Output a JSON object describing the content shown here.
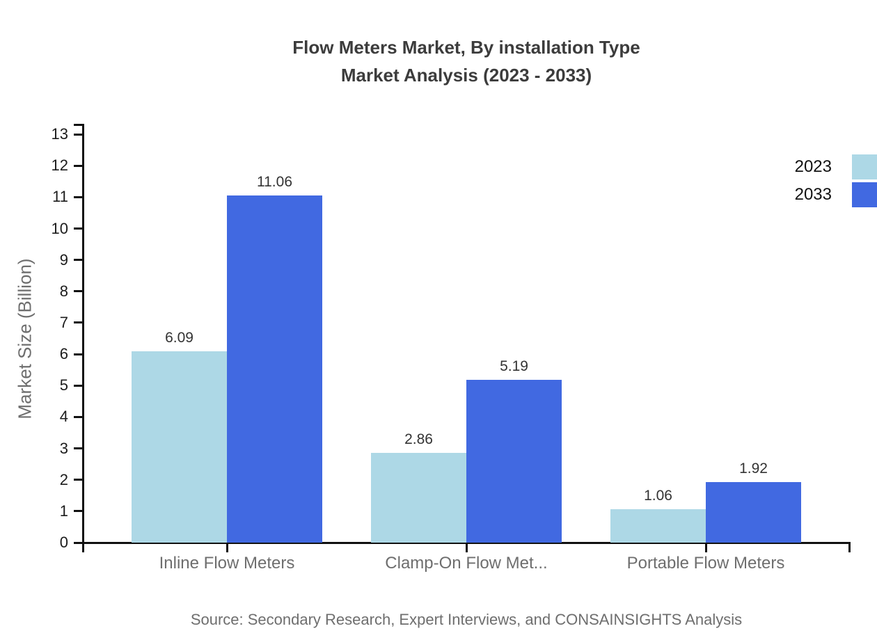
{
  "title": {
    "line1": "Flow Meters Market, By installation Type",
    "line2": "Market Analysis (2023 - 2033)"
  },
  "source": "Source: Secondary Research, Expert Interviews, and CONSAINSIGHTS Analysis",
  "chart_data": {
    "type": "bar",
    "title": "Flow Meters Market, By installation Type Market Analysis (2023 - 2033)",
    "xlabel": "",
    "ylabel": "Market Size (Billion)",
    "ylim": [
      0,
      13.3
    ],
    "y_ticks": [
      0,
      1,
      2,
      3,
      4,
      5,
      6,
      7,
      8,
      9,
      10,
      11,
      12,
      13
    ],
    "categories": [
      "Inline Flow Meters",
      "Clamp-On Flow Met...",
      "Portable Flow Meters"
    ],
    "series": [
      {
        "name": "2023",
        "color": "#ADD8E6",
        "values": [
          6.09,
          2.86,
          1.06
        ]
      },
      {
        "name": "2033",
        "color": "#4169E1",
        "values": [
          11.06,
          5.19,
          1.92
        ]
      }
    ],
    "value_labels_shown": true,
    "legend_position": "top-right",
    "grid": false
  },
  "colors": {
    "bar_2023": "#ADD8E6",
    "bar_2033": "#4169E1",
    "axis": "#111111",
    "title_text": "#3c3c3c",
    "muted_text": "#6e6e6e",
    "tick_text": "#1c1c1c",
    "value_text": "#333333",
    "background": "#ffffff"
  }
}
